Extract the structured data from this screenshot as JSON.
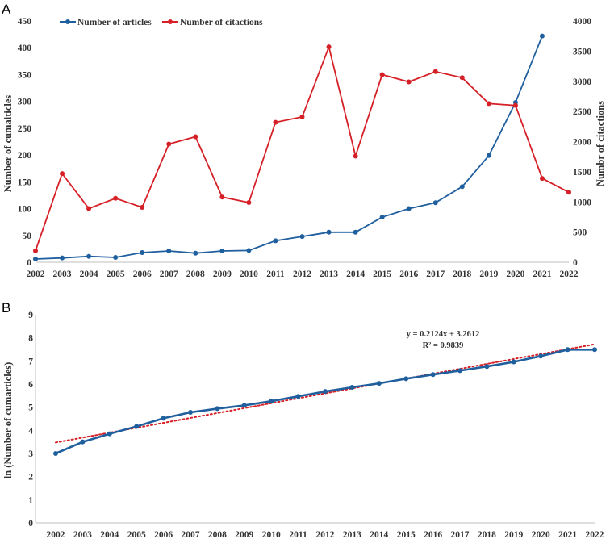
{
  "chart_data": [
    {
      "panel": "A",
      "type": "line",
      "categories": [
        "2002",
        "2003",
        "2004",
        "2005",
        "2006",
        "2007",
        "2008",
        "2009",
        "2010",
        "2011",
        "2012",
        "2013",
        "2014",
        "2015",
        "2016",
        "2017",
        "2018",
        "2019",
        "2020",
        "2021",
        "2022"
      ],
      "series": [
        {
          "name": "Number of articles",
          "axis": "left",
          "color": "#1f5f9e",
          "values": [
            6,
            8,
            11,
            9,
            18,
            21,
            17,
            21,
            22,
            40,
            48,
            56,
            56,
            84,
            100,
            111,
            141,
            199,
            298,
            422,
            null
          ]
        },
        {
          "name": "Number of citactions",
          "axis": "right",
          "color": "#d62027",
          "values": [
            190,
            1470,
            890,
            1060,
            910,
            1960,
            2080,
            1080,
            990,
            2320,
            2410,
            3570,
            1760,
            3110,
            2990,
            3160,
            3060,
            2630,
            2600,
            1390,
            1160
          ]
        }
      ],
      "y_left": {
        "label": "Number of cumaiticles",
        "lim": [
          0,
          450
        ],
        "ticks": [
          "0",
          "50",
          "100",
          "150",
          "200",
          "250",
          "300",
          "350",
          "400",
          "450"
        ]
      },
      "y_right": {
        "label": "Numbr of citactions",
        "lim": [
          0,
          4000
        ],
        "ticks": [
          "0",
          "500",
          "1000",
          "1500",
          "2000",
          "2500",
          "3000",
          "3500",
          "4000"
        ]
      },
      "legend": "top-left"
    },
    {
      "panel": "B",
      "type": "line",
      "categories": [
        "2002",
        "2003",
        "2004",
        "2005",
        "2006",
        "2007",
        "2008",
        "2009",
        "2010",
        "2011",
        "2012",
        "2013",
        "2014",
        "2015",
        "2016",
        "2017",
        "2018",
        "2019",
        "2020",
        "2021",
        "2022"
      ],
      "series": [
        {
          "name": "ln (Number of cumarticles)",
          "color": "#1f5f9e",
          "values": [
            3.0,
            3.5,
            3.85,
            4.17,
            4.52,
            4.78,
            4.94,
            5.08,
            5.26,
            5.47,
            5.68,
            5.86,
            6.03,
            6.23,
            6.41,
            6.58,
            6.76,
            6.96,
            7.21,
            7.49,
            7.49
          ]
        }
      ],
      "trendline": {
        "slope": 0.2124,
        "intercept": 3.2612,
        "color": "#d62027",
        "style": "dotted"
      },
      "equation": "y = 0.2124x + 3.2612",
      "r_squared": "R² = 0.9839",
      "ylabel": "ln (Number of cumarticles)",
      "ylim": [
        0,
        9
      ],
      "yticks": [
        "0",
        "1",
        "2",
        "3",
        "4",
        "5",
        "6",
        "7",
        "8",
        "9"
      ]
    }
  ],
  "panel_labels": [
    "A",
    "B"
  ]
}
